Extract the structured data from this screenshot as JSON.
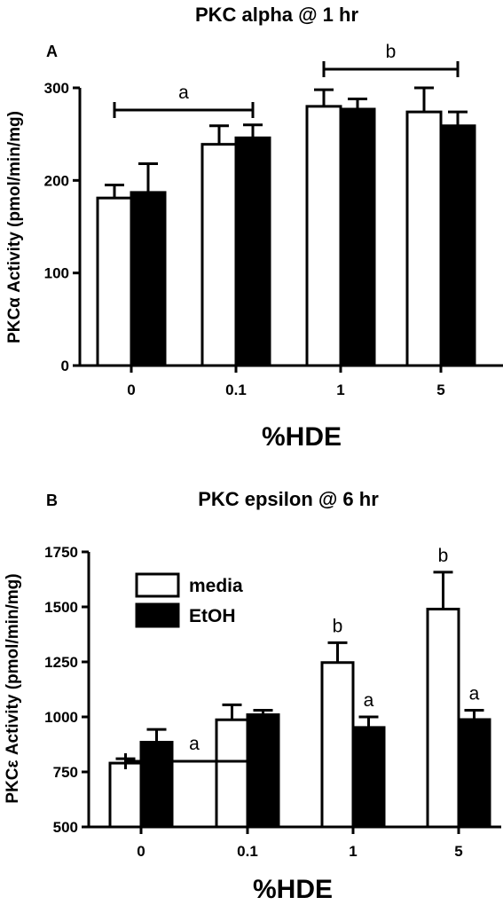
{
  "colors": {
    "media": "#ffffff",
    "EtOH": "#000000",
    "axis": "#000000"
  },
  "chart_data": [
    {
      "panel": "A",
      "type": "bar",
      "title": "PKC alpha @ 1 hr",
      "xlabel": "%HDE",
      "ylabel": "PKCα Activity (pmol/min/mg)",
      "categories": [
        "0",
        "0.1",
        "1",
        "5"
      ],
      "ylim": [
        0,
        300
      ],
      "yticks": [
        "0",
        "100",
        "200",
        "300"
      ],
      "series": [
        {
          "name": "media",
          "values": [
            181,
            239,
            280,
            274
          ],
          "errors": [
            14,
            20,
            18,
            26
          ]
        },
        {
          "name": "EtOH",
          "values": [
            187,
            246,
            277,
            259
          ],
          "errors": [
            31,
            14,
            11,
            15
          ]
        }
      ],
      "bracket_labels": [
        {
          "text": "a",
          "from": "0",
          "to": "0.1"
        },
        {
          "text": "b",
          "from": "1",
          "to": "5"
        }
      ]
    },
    {
      "panel": "B",
      "type": "bar",
      "title": "PKC epsilon @ 6 hr",
      "xlabel": "%HDE",
      "ylabel": "PKCε Activity (pmol/min/mg)",
      "categories": [
        "0",
        "0.1",
        "1",
        "5"
      ],
      "ylim": [
        500,
        1750
      ],
      "yticks": [
        "500",
        "750",
        "1000",
        "1250",
        "1500",
        "1750"
      ],
      "legend": "top-left",
      "series": [
        {
          "name": "media",
          "values": [
            790,
            987,
            1247,
            1490
          ],
          "errors": [
            20,
            68,
            90,
            168
          ],
          "labels": [
            "",
            "",
            "b",
            "b"
          ]
        },
        {
          "name": "EtOH",
          "values": [
            885,
            1010,
            952,
            988
          ],
          "errors": [
            58,
            20,
            48,
            42
          ],
          "labels": [
            "",
            "",
            "a",
            "a"
          ]
        }
      ],
      "bracket_labels": [
        {
          "text": "a",
          "from": "0",
          "to": "0.1"
        }
      ]
    }
  ]
}
